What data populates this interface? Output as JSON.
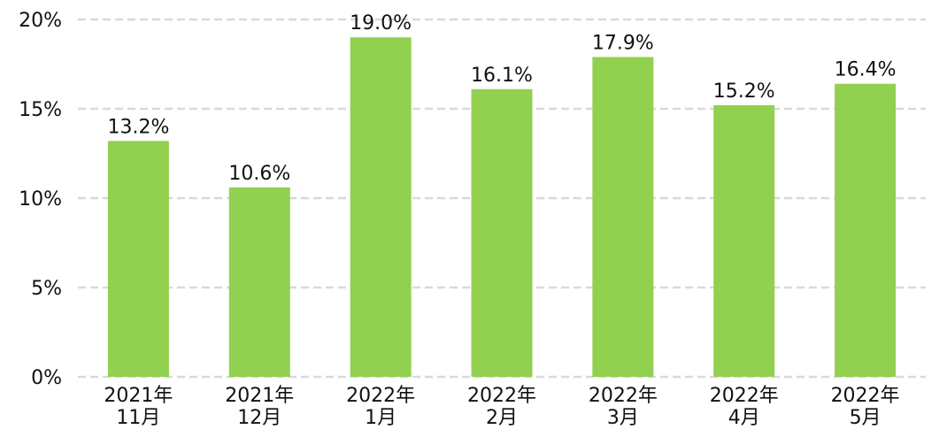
{
  "chart_data": {
    "type": "bar",
    "title": "",
    "xlabel": "",
    "ylabel": "",
    "categories": [
      [
        "2021年",
        "11月"
      ],
      [
        "2021年",
        "12月"
      ],
      [
        "2022年",
        "1月"
      ],
      [
        "2022年",
        "2月"
      ],
      [
        "2022年",
        "3月"
      ],
      [
        "2022年",
        "4月"
      ],
      [
        "2022年",
        "5月"
      ]
    ],
    "values": [
      13.2,
      10.6,
      19.0,
      16.1,
      17.9,
      15.2,
      16.4
    ],
    "data_labels": [
      "13.2%",
      "10.6%",
      "19.0%",
      "16.1%",
      "17.9%",
      "15.2%",
      "16.4%"
    ],
    "ylim": [
      0,
      20
    ],
    "yticks": [
      0,
      5,
      10,
      15,
      20
    ],
    "ytick_labels": [
      "0%",
      "5%",
      "10%",
      "15%",
      "20%"
    ],
    "grid": true,
    "legend": "none",
    "colors": {
      "bar": "#92d050",
      "grid": "#d9d9d9",
      "text": "#111111"
    }
  }
}
